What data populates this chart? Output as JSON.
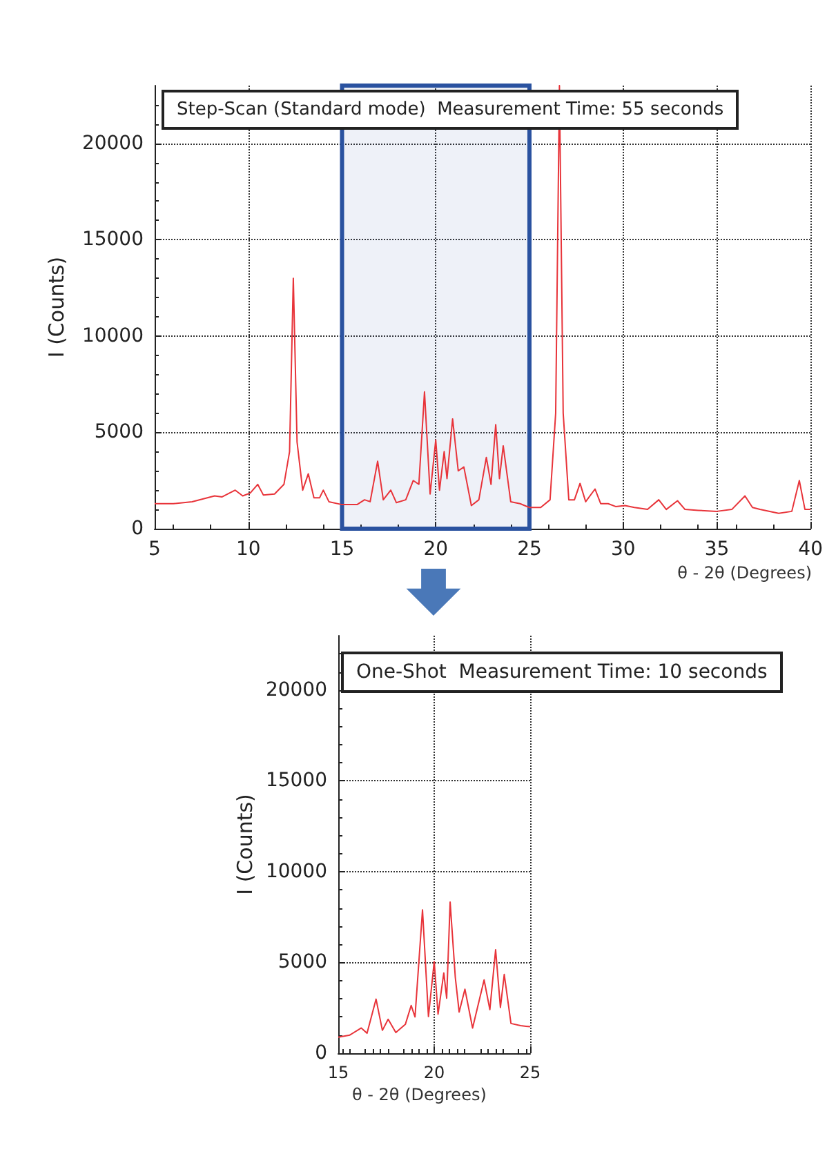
{
  "chart_data": [
    {
      "type": "line",
      "title": "Step-Scan (Standard mode)  Measurement Time: 55 seconds",
      "xlabel": "θ - 2θ (Degrees)",
      "ylabel": "I (Counts)",
      "x": [
        5,
        6,
        7,
        7.6,
        8.2,
        8.6,
        9.3,
        9.7,
        10.1,
        10.5,
        10.8,
        11.4,
        11.9,
        12.2,
        12.4,
        12.6,
        12.9,
        13.2,
        13.5,
        13.8,
        14.0,
        14.3,
        15,
        15.8,
        16.2,
        16.5,
        16.9,
        17.2,
        17.6,
        17.9,
        18.4,
        18.8,
        19.1,
        19.4,
        19.7,
        20.0,
        20.2,
        20.45,
        20.6,
        20.9,
        21.2,
        21.5,
        21.9,
        22.3,
        22.7,
        22.95,
        23.2,
        23.4,
        23.6,
        24,
        24.5,
        25,
        25.6,
        26.1,
        26.4,
        26.6,
        26.8,
        27.1,
        27.4,
        27.7,
        28.0,
        28.5,
        28.8,
        29.2,
        29.6,
        30.1,
        30.6,
        31.3,
        31.9,
        32.3,
        32.9,
        33.3,
        34,
        35,
        35.8,
        36.5,
        36.9,
        37.3,
        38.3,
        39,
        39.4,
        39.7,
        40
      ],
      "values": [
        1300,
        1300,
        1400,
        1550,
        1700,
        1650,
        2000,
        1700,
        1850,
        2300,
        1750,
        1800,
        2300,
        4000,
        13000,
        4500,
        2000,
        2850,
        1600,
        1600,
        2000,
        1400,
        1250,
        1250,
        1500,
        1400,
        3500,
        1500,
        2000,
        1350,
        1500,
        2500,
        2300,
        7100,
        1800,
        4600,
        2000,
        4000,
        2600,
        5700,
        3000,
        3200,
        1200,
        1500,
        3700,
        2300,
        5400,
        2600,
        4300,
        1400,
        1300,
        1100,
        1100,
        1500,
        6000,
        23000,
        6000,
        1500,
        1500,
        2350,
        1400,
        2060,
        1300,
        1300,
        1150,
        1200,
        1100,
        1000,
        1500,
        1000,
        1450,
        1000,
        950,
        900,
        1000,
        1700,
        1100,
        1000,
        800,
        900,
        2500,
        1000,
        1000
      ],
      "color": "#e8343a",
      "marker": "none",
      "line_style": "solid",
      "xlim": [
        5,
        40
      ],
      "ylim": [
        0,
        23000
      ],
      "xticks": [
        5,
        10,
        15,
        20,
        25,
        30,
        35,
        40
      ],
      "yticks": [
        0,
        5000,
        10000,
        15000,
        20000
      ],
      "grid": true,
      "bands": [
        {
          "axis": "x",
          "from": 15,
          "to": 25,
          "color": "#2a52a0"
        }
      ]
    },
    {
      "type": "line",
      "title": "One-Shot  Measurement Time: 10 seconds",
      "xlabel": "θ - 2θ (Degrees)",
      "ylabel": "I (Counts)",
      "x": [
        15,
        15.6,
        16.2,
        16.5,
        16.97,
        17.3,
        17.6,
        18,
        18.5,
        18.8,
        19.0,
        19.39,
        19.7,
        20.0,
        20.2,
        20.5,
        20.65,
        20.83,
        21.1,
        21.3,
        21.6,
        22,
        22.6,
        22.9,
        23.2,
        23.45,
        23.65,
        24,
        24.5,
        25
      ],
      "values": [
        880,
        1000,
        1390,
        1100,
        2980,
        1260,
        1870,
        1140,
        1600,
        2630,
        2000,
        7900,
        2020,
        5050,
        2150,
        4420,
        3030,
        8330,
        4170,
        2270,
        3530,
        1390,
        4040,
        2400,
        5700,
        2520,
        4340,
        1640,
        1520,
        1460
      ],
      "color": "#e8343a",
      "marker": "none",
      "line_style": "solid",
      "xlim": [
        15,
        25
      ],
      "ylim": [
        0,
        23000
      ],
      "xticks": [
        15,
        20,
        25
      ],
      "yticks": [
        0,
        5000,
        10000,
        15000,
        20000
      ],
      "grid": true
    }
  ]
}
